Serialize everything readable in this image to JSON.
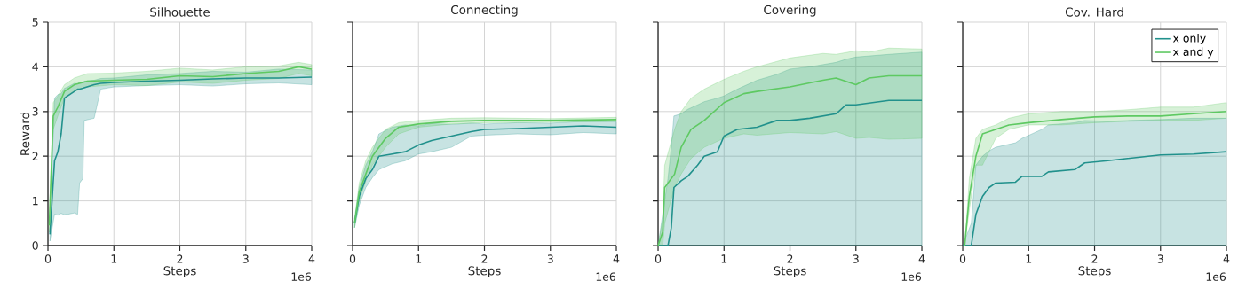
{
  "chart_data": [
    {
      "type": "line",
      "title": "Silhouette",
      "xlabel": "Steps",
      "ylabel": "Reward",
      "annotations": [
        "1e6"
      ],
      "grid": true,
      "xlim": [
        0,
        4
      ],
      "ylim": [
        0,
        5
      ],
      "yticks": [
        0,
        1,
        2,
        3,
        4,
        5
      ],
      "xticks": [
        0,
        1,
        2,
        3,
        4
      ],
      "series": [
        {
          "color": "#21918c",
          "x": [
            0.03,
            0.1,
            0.15,
            0.2,
            0.25,
            0.3,
            0.4,
            0.45,
            0.48,
            0.53,
            0.55,
            0.7,
            0.8,
            1.0,
            1.5,
            2.0,
            2.5,
            3.0,
            3.5,
            4.0
          ],
          "values": [
            0.25,
            1.9,
            2.1,
            2.5,
            3.3,
            3.35,
            3.45,
            3.5,
            3.5,
            3.52,
            3.53,
            3.6,
            3.63,
            3.65,
            3.68,
            3.7,
            3.73,
            3.75,
            3.75,
            3.77
          ],
          "lower": [
            0.1,
            0.7,
            0.68,
            0.72,
            0.69,
            0.7,
            0.73,
            0.7,
            1.4,
            1.5,
            2.8,
            2.85,
            3.5,
            3.55,
            3.58,
            3.6,
            3.57,
            3.62,
            3.64,
            3.6
          ],
          "upper": [
            0.5,
            3.3,
            3.38,
            3.4,
            3.52,
            3.55,
            3.63,
            3.62,
            3.66,
            3.65,
            3.68,
            3.7,
            3.74,
            3.75,
            3.82,
            3.85,
            3.9,
            3.88,
            3.95,
            3.93
          ]
        },
        {
          "color": "#5ec962",
          "x": [
            0.02,
            0.08,
            0.15,
            0.25,
            0.4,
            0.6,
            1.0,
            1.5,
            2.0,
            2.5,
            3.0,
            3.5,
            3.8,
            4.0
          ],
          "values": [
            0.45,
            2.9,
            3.1,
            3.45,
            3.6,
            3.68,
            3.7,
            3.72,
            3.8,
            3.78,
            3.85,
            3.9,
            4.0,
            3.95
          ],
          "lower": [
            0.3,
            2.6,
            2.9,
            3.3,
            3.45,
            3.55,
            3.6,
            3.58,
            3.66,
            3.63,
            3.7,
            3.74,
            3.85,
            3.8
          ],
          "upper": [
            0.6,
            3.2,
            3.35,
            3.6,
            3.75,
            3.85,
            3.86,
            3.9,
            3.97,
            3.93,
            4.0,
            4.02,
            4.1,
            4.05
          ]
        }
      ]
    },
    {
      "type": "line",
      "title": "Connecting",
      "xlabel": "Steps",
      "annotations": [
        "1e6"
      ],
      "grid": true,
      "tick_labels": "x",
      "xlim": [
        0,
        4
      ],
      "ylim": [
        0,
        5
      ],
      "yticks": [
        0,
        1,
        2,
        3,
        4,
        5
      ],
      "xticks": [
        0,
        1,
        2,
        3,
        4
      ],
      "series": [
        {
          "color": "#21918c",
          "x": [
            0.03,
            0.1,
            0.2,
            0.3,
            0.4,
            0.6,
            0.8,
            1.0,
            1.2,
            1.5,
            1.8,
            2.0,
            2.5,
            3.0,
            3.5,
            4.0
          ],
          "values": [
            0.5,
            1.1,
            1.5,
            1.7,
            2.0,
            2.05,
            2.1,
            2.25,
            2.35,
            2.45,
            2.55,
            2.6,
            2.62,
            2.65,
            2.68,
            2.65
          ],
          "lower": [
            0.4,
            0.9,
            1.3,
            1.52,
            1.7,
            1.83,
            1.9,
            2.05,
            2.1,
            2.2,
            2.45,
            2.47,
            2.5,
            2.48,
            2.53,
            2.5
          ],
          "upper": [
            0.6,
            1.3,
            1.8,
            2.1,
            2.5,
            2.65,
            2.7,
            2.68,
            2.73,
            2.71,
            2.74,
            2.72,
            2.75,
            2.74,
            2.78,
            2.77
          ]
        },
        {
          "color": "#5ec962",
          "x": [
            0.03,
            0.1,
            0.2,
            0.3,
            0.5,
            0.7,
            1.0,
            1.5,
            2.0,
            3.0,
            4.0
          ],
          "values": [
            0.5,
            1.2,
            1.6,
            2.0,
            2.4,
            2.65,
            2.72,
            2.78,
            2.8,
            2.8,
            2.82
          ],
          "lower": [
            0.4,
            1.0,
            1.45,
            1.8,
            2.2,
            2.5,
            2.65,
            2.72,
            2.75,
            2.76,
            2.78
          ],
          "upper": [
            0.6,
            1.4,
            1.9,
            2.2,
            2.6,
            2.75,
            2.8,
            2.85,
            2.86,
            2.84,
            2.87
          ]
        }
      ]
    },
    {
      "type": "line",
      "title": "Covering",
      "xlabel": "Steps",
      "annotations": [
        "1e6"
      ],
      "grid": true,
      "tick_labels": "x",
      "xlim": [
        0,
        4
      ],
      "ylim": [
        0,
        5
      ],
      "yticks": [
        0,
        1,
        2,
        3,
        4,
        5
      ],
      "xticks": [
        0,
        1,
        2,
        3,
        4
      ],
      "series": [
        {
          "color": "#21918c",
          "x": [
            0,
            0.15,
            0.2,
            0.24,
            0.35,
            0.45,
            0.6,
            0.7,
            0.9,
            1.0,
            1.2,
            1.5,
            1.8,
            2.0,
            2.3,
            2.7,
            2.85,
            3.0,
            3.5,
            4.0
          ],
          "values": [
            0,
            0,
            0.4,
            1.3,
            1.45,
            1.55,
            1.8,
            2.0,
            2.1,
            2.45,
            2.6,
            2.65,
            2.8,
            2.8,
            2.85,
            2.95,
            3.15,
            3.15,
            3.25,
            3.25
          ],
          "lower": [
            0,
            0,
            0,
            0,
            0,
            0,
            0,
            0,
            0,
            0,
            0,
            0,
            0,
            0,
            0,
            0,
            0,
            0,
            0,
            0
          ],
          "upper": [
            0,
            1.5,
            2.2,
            2.9,
            2.95,
            3.05,
            3.15,
            3.22,
            3.3,
            3.35,
            3.5,
            3.7,
            3.83,
            3.95,
            4.0,
            4.1,
            4.17,
            4.22,
            4.28,
            4.33
          ]
        },
        {
          "color": "#5ec962",
          "x": [
            0,
            0.07,
            0.1,
            0.25,
            0.35,
            0.5,
            0.7,
            1.0,
            1.3,
            1.5,
            2.0,
            2.5,
            2.7,
            3.0,
            3.2,
            3.5,
            4.0
          ],
          "values": [
            0,
            0.3,
            1.3,
            1.6,
            2.2,
            2.6,
            2.8,
            3.2,
            3.4,
            3.45,
            3.55,
            3.7,
            3.75,
            3.6,
            3.75,
            3.8,
            3.8
          ],
          "lower": [
            0,
            0,
            0.5,
            1.3,
            1.6,
            1.95,
            2.2,
            2.4,
            2.5,
            2.47,
            2.53,
            2.5,
            2.55,
            2.4,
            2.42,
            2.38,
            2.4
          ],
          "upper": [
            0,
            0.6,
            1.8,
            2.6,
            3.0,
            3.3,
            3.5,
            3.72,
            3.9,
            4.0,
            4.2,
            4.3,
            4.28,
            4.36,
            4.33,
            4.42,
            4.4
          ]
        }
      ]
    },
    {
      "type": "line",
      "title": "Cov. Hard",
      "xlabel": "Steps",
      "annotations": [
        "1e6"
      ],
      "grid": true,
      "tick_labels": "x",
      "legend": "top right",
      "xlim": [
        0,
        4
      ],
      "ylim": [
        0,
        5
      ],
      "yticks": [
        0,
        1,
        2,
        3,
        4,
        5
      ],
      "xticks": [
        0,
        1,
        2,
        3,
        4
      ],
      "series": [
        {
          "name": "x only",
          "color": "#21918c",
          "x": [
            0,
            0.13,
            0.2,
            0.3,
            0.4,
            0.5,
            0.8,
            0.9,
            1.2,
            1.3,
            1.7,
            1.85,
            2.2,
            2.5,
            3.0,
            3.5,
            4.0
          ],
          "values": [
            0,
            0,
            0.7,
            1.1,
            1.3,
            1.4,
            1.42,
            1.55,
            1.55,
            1.65,
            1.7,
            1.85,
            1.9,
            1.95,
            2.03,
            2.05,
            2.1
          ],
          "lower": [
            0,
            0,
            0,
            0,
            0,
            0,
            0,
            0,
            0,
            0,
            0,
            0,
            0,
            0,
            0,
            0,
            0
          ],
          "upper": [
            0,
            0.5,
            1.8,
            2.0,
            2.12,
            2.2,
            2.3,
            2.4,
            2.6,
            2.7,
            2.75,
            2.8,
            2.78,
            2.8,
            2.82,
            2.85,
            2.85
          ]
        },
        {
          "name": "x and y",
          "color": "#5ec962",
          "x": [
            0.03,
            0.1,
            0.2,
            0.3,
            0.5,
            0.7,
            1.0,
            1.5,
            2.0,
            2.5,
            3.0,
            3.5,
            4.0
          ],
          "values": [
            0,
            1.1,
            2.0,
            2.5,
            2.6,
            2.7,
            2.75,
            2.82,
            2.88,
            2.9,
            2.9,
            2.95,
            3.0
          ],
          "lower": [
            0,
            0.8,
            1.8,
            1.8,
            2.4,
            2.6,
            2.7,
            2.7,
            2.75,
            2.78,
            2.8,
            2.8,
            2.85
          ],
          "upper": [
            0,
            1.5,
            2.4,
            2.6,
            2.7,
            2.85,
            2.95,
            3.0,
            3.0,
            3.04,
            3.1,
            3.1,
            3.2
          ]
        }
      ]
    }
  ]
}
